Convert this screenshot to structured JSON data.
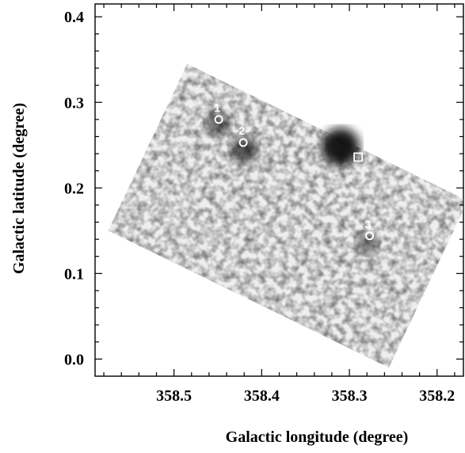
{
  "chart_data": {
    "type": "heatmap",
    "description_colormap": "grayscale",
    "xlabel": "Galactic longitude (degree)",
    "ylabel": "Galactic latitude (degree)",
    "xlim": [
      358.59,
      358.17
    ],
    "ylim": [
      -0.02,
      0.415
    ],
    "xticks": [
      358.5,
      358.4,
      358.3,
      358.2
    ],
    "xtick_labels": [
      "358.5",
      "358.4",
      "358.3",
      "358.2"
    ],
    "yticks": [
      0.0,
      0.1,
      0.2,
      0.3,
      0.4
    ],
    "ytick_labels": [
      "0.0",
      "0.1",
      "0.2",
      "0.3",
      "0.4"
    ],
    "x_minor_step": 0.02,
    "y_minor_step": 0.02,
    "field_corners": [
      [
        358.485,
        0.345
      ],
      [
        358.575,
        0.15
      ],
      [
        358.255,
        -0.01
      ],
      [
        358.165,
        0.185
      ]
    ],
    "bright_spots": [
      {
        "l": 358.31,
        "b": 0.248,
        "intensity": 1.0
      },
      {
        "l": 358.42,
        "b": 0.245,
        "intensity": 0.55
      },
      {
        "l": 358.45,
        "b": 0.275,
        "intensity": 0.4
      },
      {
        "l": 358.28,
        "b": 0.135,
        "intensity": 0.3
      }
    ],
    "sources": [
      {
        "label": "1",
        "l": 358.449,
        "b": 0.28,
        "marker": "circle"
      },
      {
        "label": "2",
        "l": 358.421,
        "b": 0.253,
        "marker": "circle"
      },
      {
        "label": "3",
        "l": 358.277,
        "b": 0.144,
        "marker": "circle"
      }
    ],
    "extra_markers": [
      {
        "l": 358.29,
        "b": 0.236,
        "marker": "square"
      }
    ],
    "colors": {
      "axis": "#000000",
      "marker": "#ffffff"
    }
  }
}
